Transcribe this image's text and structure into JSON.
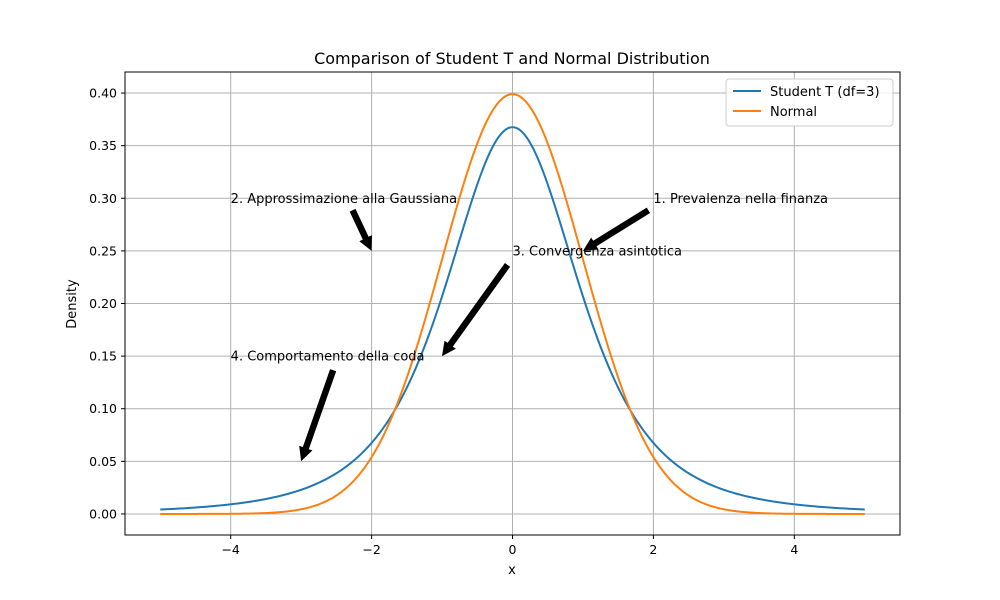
{
  "chart_data": {
    "type": "line",
    "title": "Comparison of Student T and Normal Distribution",
    "xlabel": "x",
    "ylabel": "Density",
    "xlim": [
      -5.5,
      5.5
    ],
    "ylim": [
      -0.02,
      0.42
    ],
    "x_ticks": [
      -4,
      -2,
      0,
      2,
      4
    ],
    "x_tick_labels": [
      "−4",
      "−2",
      "0",
      "2",
      "4"
    ],
    "y_ticks": [
      0.0,
      0.05,
      0.1,
      0.15,
      0.2,
      0.25,
      0.3,
      0.35,
      0.4
    ],
    "y_tick_labels": [
      "0.00",
      "0.05",
      "0.10",
      "0.15",
      "0.20",
      "0.25",
      "0.30",
      "0.35",
      "0.40"
    ],
    "grid": true,
    "legend_position": "top-right",
    "x_range": [
      -5,
      5
    ],
    "series": [
      {
        "name": "Student T (df=3)",
        "color": "#1f77b4",
        "x": [
          -5,
          -4.5,
          -4,
          -3.5,
          -3,
          -2.5,
          -2,
          -1.75,
          -1.5,
          -1.25,
          -1,
          -0.75,
          -0.5,
          -0.25,
          0,
          0.25,
          0.5,
          0.75,
          1,
          1.25,
          1.5,
          1.75,
          2,
          2.5,
          3,
          3.5,
          4,
          4.5,
          5
        ],
        "y": [
          0.0042,
          0.0055,
          0.0092,
          0.0134,
          0.0225,
          0.0382,
          0.0675,
          0.0893,
          0.1201,
          0.1618,
          0.2067,
          0.2632,
          0.3125,
          0.3507,
          0.3676,
          0.3507,
          0.3125,
          0.2632,
          0.2067,
          0.1618,
          0.1201,
          0.0893,
          0.0675,
          0.0382,
          0.0225,
          0.0134,
          0.0092,
          0.0055,
          0.0042
        ]
      },
      {
        "name": "Normal",
        "color": "#ff7f0e",
        "x": [
          -5,
          -4.5,
          -4,
          -3.5,
          -3,
          -2.5,
          -2,
          -1.75,
          -1.5,
          -1.25,
          -1,
          -0.75,
          -0.5,
          -0.25,
          0,
          0.25,
          0.5,
          0.75,
          1,
          1.25,
          1.5,
          1.75,
          2,
          2.5,
          3,
          3.5,
          4,
          4.5,
          5
        ],
        "y": [
          0.0,
          0.0,
          0.0001,
          0.0009,
          0.0044,
          0.0175,
          0.054,
          0.0863,
          0.1295,
          0.1826,
          0.242,
          0.3011,
          0.3521,
          0.3867,
          0.3989,
          0.3867,
          0.3521,
          0.3011,
          0.242,
          0.1826,
          0.1295,
          0.0863,
          0.054,
          0.0175,
          0.0044,
          0.0009,
          0.0001,
          0.0,
          0.0
        ]
      }
    ],
    "annotations": [
      {
        "text": "1. Prevalenza nella finanza",
        "text_xy": [
          2,
          0.3
        ],
        "arrow_to": [
          1,
          0.25
        ]
      },
      {
        "text": "2. Approssimazione alla Gaussiana",
        "text_xy": [
          -4,
          0.3
        ],
        "arrow_to": [
          -2,
          0.25
        ]
      },
      {
        "text": "3. Convergenza asintotica",
        "text_xy": [
          0,
          0.25
        ],
        "arrow_to": [
          -1,
          0.15
        ]
      },
      {
        "text": "4. Comportamento della coda",
        "text_xy": [
          -4,
          0.15
        ],
        "arrow_to": [
          -3,
          0.05
        ]
      }
    ]
  }
}
